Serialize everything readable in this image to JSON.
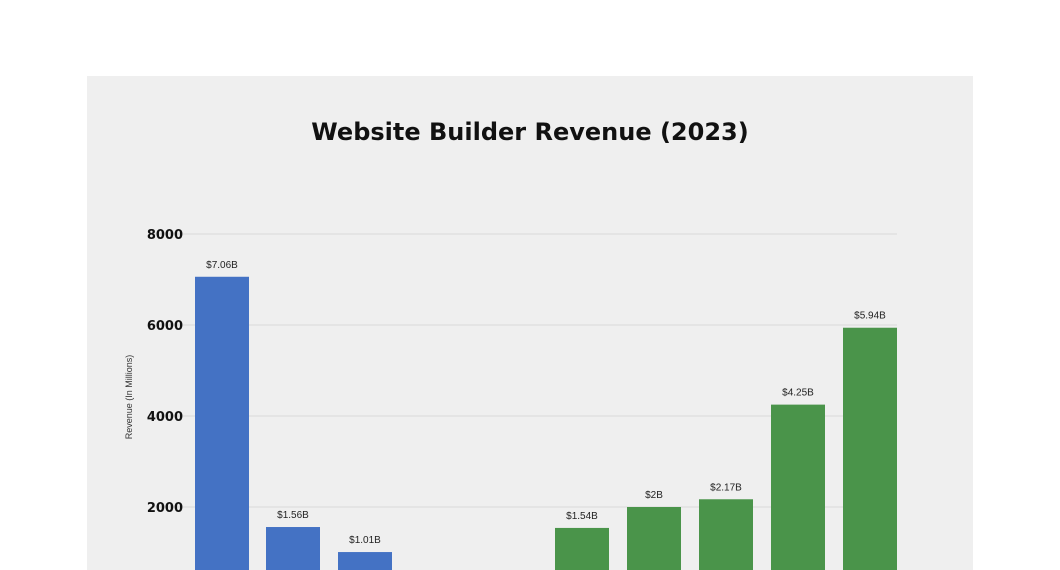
{
  "chart_data": {
    "type": "bar",
    "title": "Website Builder Revenue (2023)",
    "xlabel": "",
    "ylabel": "Revenue (In Millions)",
    "ylim": [
      0,
      8000
    ],
    "yticks": [
      "2000",
      "4000",
      "6000",
      "8000"
    ],
    "ytick_values": [
      2000,
      4000,
      6000,
      8000
    ],
    "grid": true,
    "legend": "none",
    "colors": {
      "group_a": "#4472c4",
      "group_b": "#4a944a",
      "grid": "#d9d9d9"
    },
    "bars": [
      {
        "value": 7060,
        "label": "$7.06B",
        "group": "group_a"
      },
      {
        "value": 1560,
        "label": "$1.56B",
        "group": "group_a"
      },
      {
        "value": 1010,
        "label": "$1.01B",
        "group": "group_a"
      },
      {
        "value": 1540,
        "label": "$1.54B",
        "group": "group_b"
      },
      {
        "value": 2000,
        "label": "$2B",
        "group": "group_b"
      },
      {
        "value": 2170,
        "label": "$2.17B",
        "group": "group_b"
      },
      {
        "value": 4250,
        "label": "$4.25B",
        "group": "group_b"
      },
      {
        "value": 5940,
        "label": "$5.94B",
        "group": "group_b"
      }
    ]
  }
}
